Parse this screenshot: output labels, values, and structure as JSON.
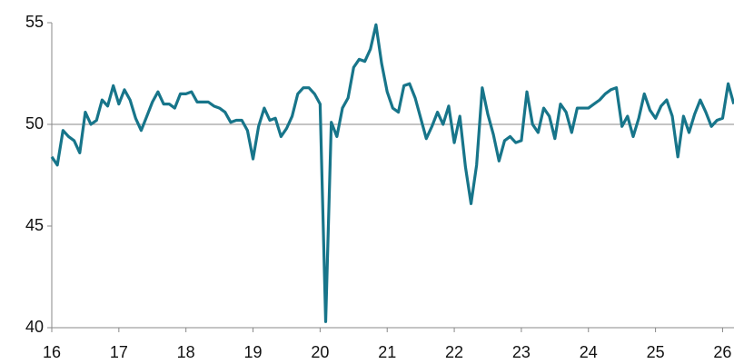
{
  "chart_data": {
    "type": "line",
    "x": [
      16,
      16.083,
      16.167,
      16.25,
      16.333,
      16.417,
      16.5,
      16.583,
      16.667,
      16.75,
      16.833,
      16.917,
      17,
      17.083,
      17.167,
      17.25,
      17.333,
      17.417,
      17.5,
      17.583,
      17.667,
      17.75,
      17.833,
      17.917,
      18,
      18.083,
      18.167,
      18.25,
      18.333,
      18.417,
      18.5,
      18.583,
      18.667,
      18.75,
      18.833,
      18.917,
      19,
      19.083,
      19.167,
      19.25,
      19.333,
      19.417,
      19.5,
      19.583,
      19.667,
      19.75,
      19.833,
      19.917,
      20,
      20.083,
      20.167,
      20.25,
      20.333,
      20.417,
      20.5,
      20.583,
      20.667,
      20.75,
      20.833,
      20.917,
      21,
      21.083,
      21.167,
      21.25,
      21.333,
      21.417,
      21.5,
      21.583,
      21.667,
      21.75,
      21.833,
      21.917,
      22,
      22.083,
      22.167,
      22.25,
      22.333,
      22.417,
      22.5,
      22.583,
      22.667,
      22.75,
      22.833,
      22.917,
      23,
      23.083,
      23.167,
      23.25,
      23.333,
      23.417,
      23.5,
      23.583,
      23.667,
      23.75,
      23.833,
      23.917,
      24,
      24.083,
      24.167,
      24.25,
      24.333,
      24.417,
      24.5,
      24.583,
      24.667,
      24.75,
      24.833,
      24.917,
      25,
      25.083,
      25.167,
      25.25,
      25.333,
      25.417,
      25.5,
      25.583,
      25.667,
      25.75,
      25.833,
      25.917,
      26,
      26.083,
      26.167
    ],
    "series": [
      {
        "color": "#17758a",
        "values": [
          48.4,
          48.0,
          49.7,
          49.4,
          49.2,
          48.6,
          50.6,
          50.0,
          50.2,
          51.2,
          50.9,
          51.9,
          51.0,
          51.7,
          51.2,
          50.3,
          49.7,
          50.4,
          51.1,
          51.6,
          51.0,
          51.0,
          50.8,
          51.5,
          51.5,
          51.6,
          51.1,
          51.1,
          51.1,
          50.9,
          50.8,
          50.6,
          50.1,
          50.2,
          50.2,
          49.7,
          48.3,
          49.9,
          50.8,
          50.2,
          50.3,
          49.4,
          49.8,
          50.4,
          51.5,
          51.8,
          51.8,
          51.5,
          51.0,
          40.3,
          50.1,
          49.4,
          50.8,
          51.3,
          52.8,
          53.2,
          53.1,
          53.7,
          54.9,
          53.0,
          51.6,
          50.8,
          50.6,
          51.9,
          52.0,
          51.3,
          50.3,
          49.3,
          49.9,
          50.6,
          50.0,
          50.9,
          49.1,
          50.4,
          47.9,
          46.1,
          48.0,
          51.8,
          50.5,
          49.5,
          48.2,
          49.2,
          49.4,
          49.1,
          49.2,
          51.6,
          50.0,
          49.6,
          50.8,
          50.4,
          49.3,
          51.0,
          50.6,
          49.6,
          50.8,
          50.8,
          50.8,
          51.0,
          51.2,
          51.5,
          51.7,
          51.8,
          49.9,
          50.4,
          49.4,
          50.3,
          51.5,
          50.7,
          50.3,
          50.9,
          51.2,
          50.4,
          48.4,
          50.4,
          49.6,
          50.5,
          51.2,
          50.6,
          49.9,
          50.2,
          50.3,
          52.0,
          51.0
        ]
      }
    ],
    "xlim": [
      16,
      26.17
    ],
    "xticks": [
      16,
      17,
      18,
      19,
      20,
      21,
      22,
      23,
      24,
      25,
      26
    ],
    "ylim": [
      40,
      55
    ],
    "yticks": [
      40,
      45,
      50,
      55
    ],
    "reference_line": 50
  }
}
